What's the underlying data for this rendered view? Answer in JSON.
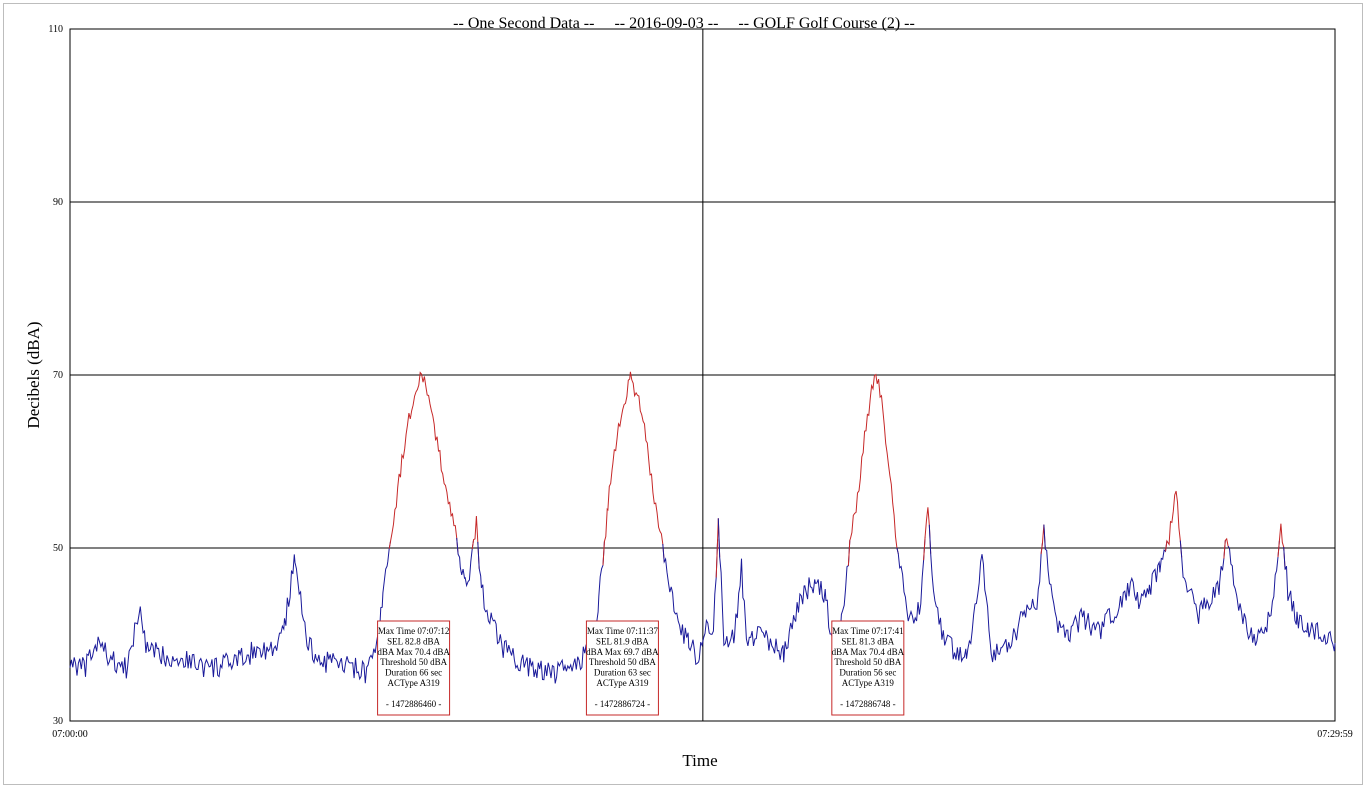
{
  "chart_data": {
    "type": "line",
    "title": "-- One Second Data --     -- 2016-09-03 --     -- GOLF Golf Course (2) --",
    "xlabel": "Time",
    "ylabel": "Decibels (dBA)",
    "x_tick_labels": [
      "07:00:00",
      "07:29:59"
    ],
    "x_range_seconds": [
      0,
      1799
    ],
    "ylim": [
      30,
      110
    ],
    "y_ticks": [
      30,
      50,
      70,
      90,
      110
    ],
    "grid": "horizontal at 50, 70, 90, 110; vertical at 07:15:00",
    "event_threshold": 50,
    "series": [
      {
        "name": "",
        "color": "#1a1a9a",
        "event_color": "#c62828",
        "points_time_sec_db": [
          [
            0,
            37
          ],
          [
            20,
            36
          ],
          [
            40,
            39
          ],
          [
            60,
            37
          ],
          [
            80,
            36
          ],
          [
            100,
            43
          ],
          [
            110,
            38
          ],
          [
            140,
            37.5
          ],
          [
            170,
            37
          ],
          [
            200,
            36
          ],
          [
            240,
            37
          ],
          [
            270,
            38.5
          ],
          [
            290,
            38
          ],
          [
            305,
            41
          ],
          [
            320,
            49
          ],
          [
            335,
            40
          ],
          [
            350,
            37
          ],
          [
            380,
            36.5
          ],
          [
            410,
            36
          ],
          [
            420,
            35.5
          ],
          [
            430,
            37
          ],
          [
            440,
            40
          ],
          [
            445,
            45
          ],
          [
            452,
            49
          ],
          [
            460,
            53
          ],
          [
            470,
            59
          ],
          [
            480,
            64
          ],
          [
            490,
            68
          ],
          [
            500,
            70.4
          ],
          [
            510,
            67
          ],
          [
            520,
            63
          ],
          [
            530,
            59
          ],
          [
            540,
            55
          ],
          [
            550,
            51
          ],
          [
            555,
            48
          ],
          [
            562,
            46
          ],
          [
            570,
            48
          ],
          [
            578,
            53
          ],
          [
            585,
            45
          ],
          [
            600,
            41
          ],
          [
            620,
            38
          ],
          [
            640,
            37
          ],
          [
            660,
            36
          ],
          [
            690,
            35.5
          ],
          [
            720,
            36.5
          ],
          [
            735,
            38
          ],
          [
            745,
            40
          ],
          [
            752,
            44
          ],
          [
            760,
            50
          ],
          [
            765,
            55
          ],
          [
            772,
            60
          ],
          [
            780,
            64
          ],
          [
            788,
            67
          ],
          [
            797,
            69.7
          ],
          [
            805,
            68
          ],
          [
            815,
            65
          ],
          [
            825,
            59
          ],
          [
            835,
            54
          ],
          [
            845,
            49
          ],
          [
            855,
            45
          ],
          [
            865,
            41
          ],
          [
            880,
            39
          ],
          [
            895,
            37
          ],
          [
            905,
            42
          ],
          [
            915,
            40
          ],
          [
            922,
            53
          ],
          [
            930,
            40
          ],
          [
            945,
            39.5
          ],
          [
            955,
            48
          ],
          [
            962,
            39
          ],
          [
            980,
            40
          ],
          [
            1000,
            39
          ],
          [
            1015,
            38
          ],
          [
            1030,
            42
          ],
          [
            1045,
            45
          ],
          [
            1060,
            46
          ],
          [
            1075,
            44
          ],
          [
            1085,
            39
          ],
          [
            1095,
            40
          ],
          [
            1110,
            51
          ],
          [
            1120,
            56
          ],
          [
            1130,
            63
          ],
          [
            1140,
            68
          ],
          [
            1146,
            70.4
          ],
          [
            1152,
            68
          ],
          [
            1160,
            63
          ],
          [
            1170,
            55
          ],
          [
            1178,
            49
          ],
          [
            1190,
            43
          ],
          [
            1200,
            41
          ],
          [
            1210,
            44
          ],
          [
            1220,
            55
          ],
          [
            1228,
            45
          ],
          [
            1240,
            40
          ],
          [
            1260,
            38
          ],
          [
            1275,
            38
          ],
          [
            1285,
            41
          ],
          [
            1297,
            49
          ],
          [
            1310,
            38
          ],
          [
            1325,
            38
          ],
          [
            1340,
            39
          ],
          [
            1355,
            43
          ],
          [
            1375,
            44
          ],
          [
            1385,
            52
          ],
          [
            1395,
            45
          ],
          [
            1405,
            41
          ],
          [
            1420,
            40
          ],
          [
            1440,
            42
          ],
          [
            1460,
            40
          ],
          [
            1480,
            42
          ],
          [
            1500,
            44
          ],
          [
            1510,
            46
          ],
          [
            1520,
            44
          ],
          [
            1535,
            45
          ],
          [
            1550,
            48
          ],
          [
            1563,
            51
          ],
          [
            1573,
            57
          ],
          [
            1583,
            47
          ],
          [
            1593,
            45
          ],
          [
            1605,
            42
          ],
          [
            1620,
            44
          ],
          [
            1635,
            46
          ],
          [
            1645,
            51
          ],
          [
            1660,
            44
          ],
          [
            1680,
            40
          ],
          [
            1700,
            40
          ],
          [
            1712,
            44
          ],
          [
            1722,
            53
          ],
          [
            1732,
            45
          ],
          [
            1745,
            42
          ],
          [
            1760,
            41
          ],
          [
            1780,
            40
          ],
          [
            1799,
            39
          ]
        ]
      }
    ],
    "annotations": [
      {
        "time_sec": 500,
        "lines": [
          "Max Time 07:07:12",
          "SEL 82.8 dBA",
          "dBA Max 70.4 dBA",
          "Threshold 50 dBA",
          "Duration 66 sec",
          "ACType A319",
          "- 1472886460 -"
        ]
      },
      {
        "time_sec": 797,
        "lines": [
          "Max Time 07:11:37",
          "SEL 81.9 dBA",
          "dBA Max 69.7 dBA",
          "Threshold 50 dBA",
          "Duration 63 sec",
          "ACType A319",
          "- 1472886724 -"
        ]
      },
      {
        "time_sec": 1146,
        "lines": [
          "Max Time 07:17:41",
          "SEL 81.3 dBA",
          "dBA Max 70.4 dBA",
          "Threshold 50 dBA",
          "Duration 56 sec",
          "ACType A319",
          "- 1472886748 -"
        ]
      }
    ]
  }
}
